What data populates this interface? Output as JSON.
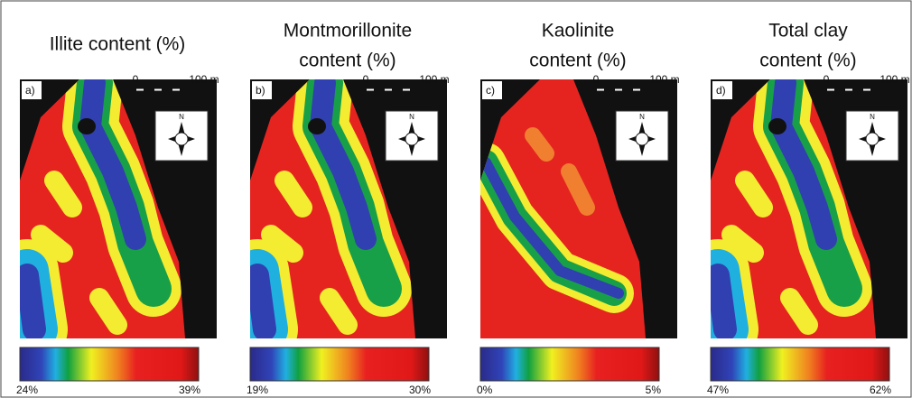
{
  "panels": [
    {
      "label": "a)",
      "title": [
        "Illite content (%)"
      ],
      "scale": {
        "start": "0",
        "end": "100 m"
      },
      "north": "N",
      "colorbar": {
        "min": "24%",
        "max": "39%"
      }
    },
    {
      "label": "b)",
      "title": [
        "Montmorillonite",
        "content (%)"
      ],
      "scale": {
        "start": "0",
        "end": "100 m"
      },
      "north": "N",
      "colorbar": {
        "min": "19%",
        "max": "30%"
      }
    },
    {
      "label": "c)",
      "title": [
        "Kaolinite",
        "content (%)"
      ],
      "scale": {
        "start": "0",
        "end": "100 m"
      },
      "north": "N",
      "colorbar": {
        "min": "0%",
        "max": "5%"
      }
    },
    {
      "label": "d)",
      "title": [
        "Total clay",
        "content (%)"
      ],
      "scale": {
        "start": "0",
        "end": "100 m"
      },
      "north": "N",
      "colorbar": {
        "min": "47%",
        "max": "62%"
      }
    }
  ]
}
